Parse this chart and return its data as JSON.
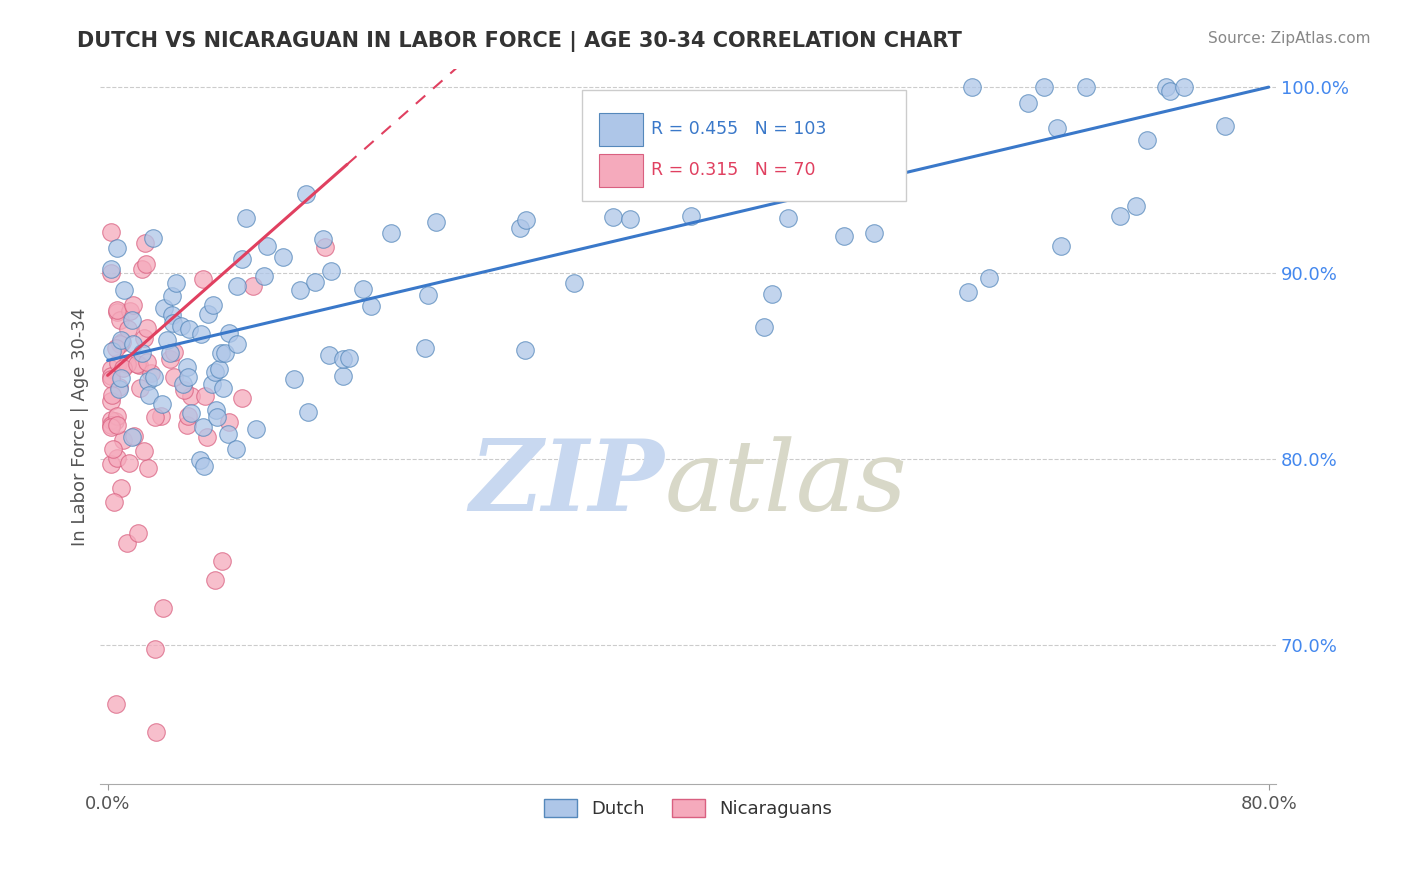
{
  "title": "DUTCH VS NICARAGUAN IN LABOR FORCE | AGE 30-34 CORRELATION CHART",
  "source": "Source: ZipAtlas.com",
  "ylabel": "In Labor Force | Age 30-34",
  "xlim": [
    -0.005,
    0.805
  ],
  "ylim": [
    0.625,
    1.01
  ],
  "ytick_positions": [
    0.7,
    0.8,
    0.9,
    1.0
  ],
  "yticklabels_right": [
    "70.0%",
    "80.0%",
    "90.0%",
    "100.0%"
  ],
  "blue_R": 0.455,
  "blue_N": 103,
  "pink_R": 0.315,
  "pink_N": 70,
  "blue_color": "#aec6e8",
  "blue_edge": "#5588bb",
  "pink_color": "#f5aabc",
  "pink_edge": "#d96080",
  "blue_trend_color": "#3a78c9",
  "pink_trend_color": "#e04060",
  "legend_label_blue": "Dutch",
  "legend_label_pink": "Nicaraguans",
  "title_color": "#333333",
  "source_color": "#888888",
  "ylabel_color": "#555555",
  "ytick_color": "#4488ee",
  "xtick_color": "#555555",
  "grid_color": "#cccccc",
  "watermark_zip_color": "#c8d8f0",
  "watermark_atlas_color": "#d8d8c8"
}
